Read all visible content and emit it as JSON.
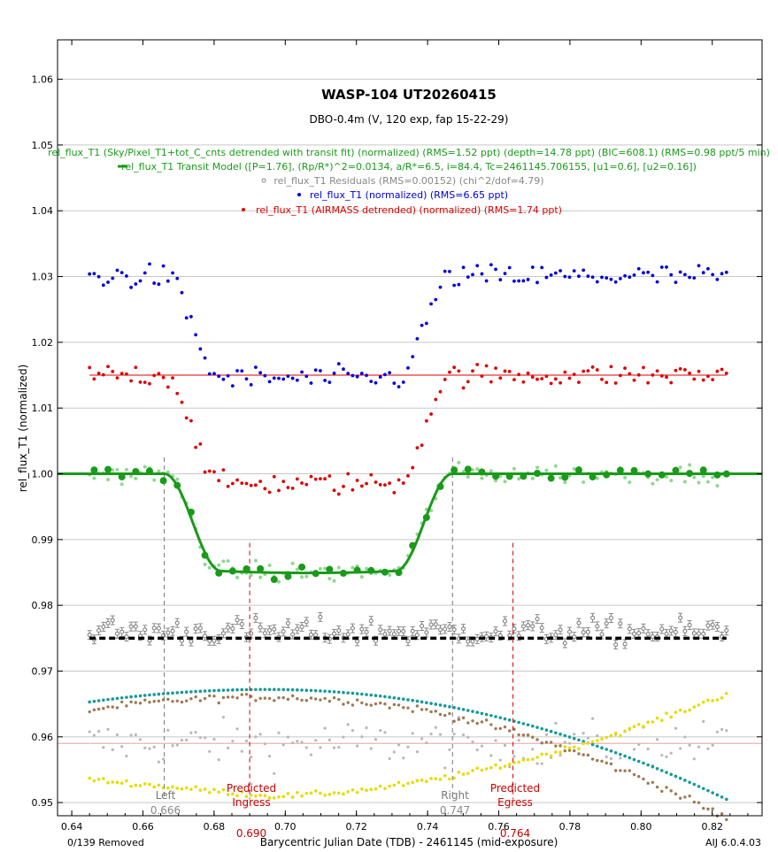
{
  "chart_data": {
    "type": "scatter",
    "title": "WASP-104 UT20260415",
    "subtitle": "DBO-0.4m (V, 120 exp, fap 15-22-29)",
    "xlabel": "Barycentric Julian Date (TDB) - 2461145 (mid-exposure)",
    "ylabel": "rel_flux_T1 (normalized)",
    "xlim": [
      0.636,
      0.834
    ],
    "ylim": [
      0.948,
      1.066
    ],
    "xticks": [
      0.64,
      0.66,
      0.68,
      0.7,
      0.72,
      0.74,
      0.76,
      0.78,
      0.8,
      0.82
    ],
    "xtick_labels": [
      "0.64",
      "0.66",
      "0.68",
      "0.70",
      "0.72",
      "0.74",
      "0.76",
      "0.78",
      "0.80",
      "0.82"
    ],
    "yticks": [
      0.95,
      0.96,
      0.97,
      0.98,
      0.99,
      1.0,
      1.01,
      1.02,
      1.03,
      1.04,
      1.05,
      1.06
    ],
    "ytick_labels": [
      "0.95",
      "0.96",
      "0.97",
      "0.98",
      "0.99",
      "1.00",
      "1.01",
      "1.02",
      "1.03",
      "1.04",
      "1.05",
      "1.06"
    ],
    "grid": true,
    "legend": [
      {
        "text": "rel_flux_T1 (Sky/Pixel_T1+tot_C_cnts detrended with transit fit) (normalized) (RMS=1.52 ppt) (depth=14.78 ppt) (BIC=608.1) (RMS=0.98 ppt/5 min)",
        "color": "#1a9a1a"
      },
      {
        "text": "rel_flux_T1 Transit Model ([P=1.76], (Rp/R*)^2=0.0134, a/R*=6.5, i=84.4, Tc=2461145.706155, [u1=0.6], [u2=0.16])",
        "color": "#1a9a1a"
      },
      {
        "text": "rel_flux_T1 Residuals (RMS=0.00152) (chi^2/dof=4.79)",
        "color": "#888888"
      },
      {
        "text": "rel_flux_T1 (normalized) (RMS=6.65 ppt)",
        "color": "#0000dd"
      },
      {
        "text": "rel_flux_T1 (AIRMASS detrended) (normalized) (RMS=1.74 ppt)",
        "color": "#dd0000"
      }
    ],
    "transit_model": {
      "baseline": 1.0,
      "depth": 0.01478,
      "t_start": 0.666,
      "t_full_start": 0.682,
      "t_full_end": 0.731,
      "t_end": 0.747
    },
    "raw_flux_offset": {
      "out_of_transit": 1.03,
      "in_transit": 1.0145
    },
    "airmass_detrended_offset": {
      "out_of_transit": 1.015,
      "in_transit": 0.9985
    },
    "residuals_level": 0.975,
    "red_reference_line": 0.959,
    "n_points": 139,
    "x_start": 0.645,
    "x_end": 0.824,
    "airmass_curve": {
      "start": 0.9653,
      "peak": 0.9672,
      "peak_x": 0.695,
      "end": 0.9505
    },
    "sky_curve": {
      "start": 0.9535,
      "min": 0.951,
      "min_x": 0.695,
      "end": 0.9665
    },
    "markers": [
      {
        "label": "Left",
        "value": "0.666",
        "x": 0.666,
        "color": "#777777"
      },
      {
        "label": "Predicted\nIngress",
        "value": "0.690",
        "x": 0.69,
        "color": "#cc0000"
      },
      {
        "label": "Right",
        "value": "0.747",
        "x": 0.747,
        "color": "#777777"
      },
      {
        "label": "Predicted\nEgress",
        "value": "0.764",
        "x": 0.764,
        "color": "#cc0000"
      }
    ],
    "footer_left": "0/139 Removed",
    "footer_right": "AIJ 6.0.4.03"
  }
}
